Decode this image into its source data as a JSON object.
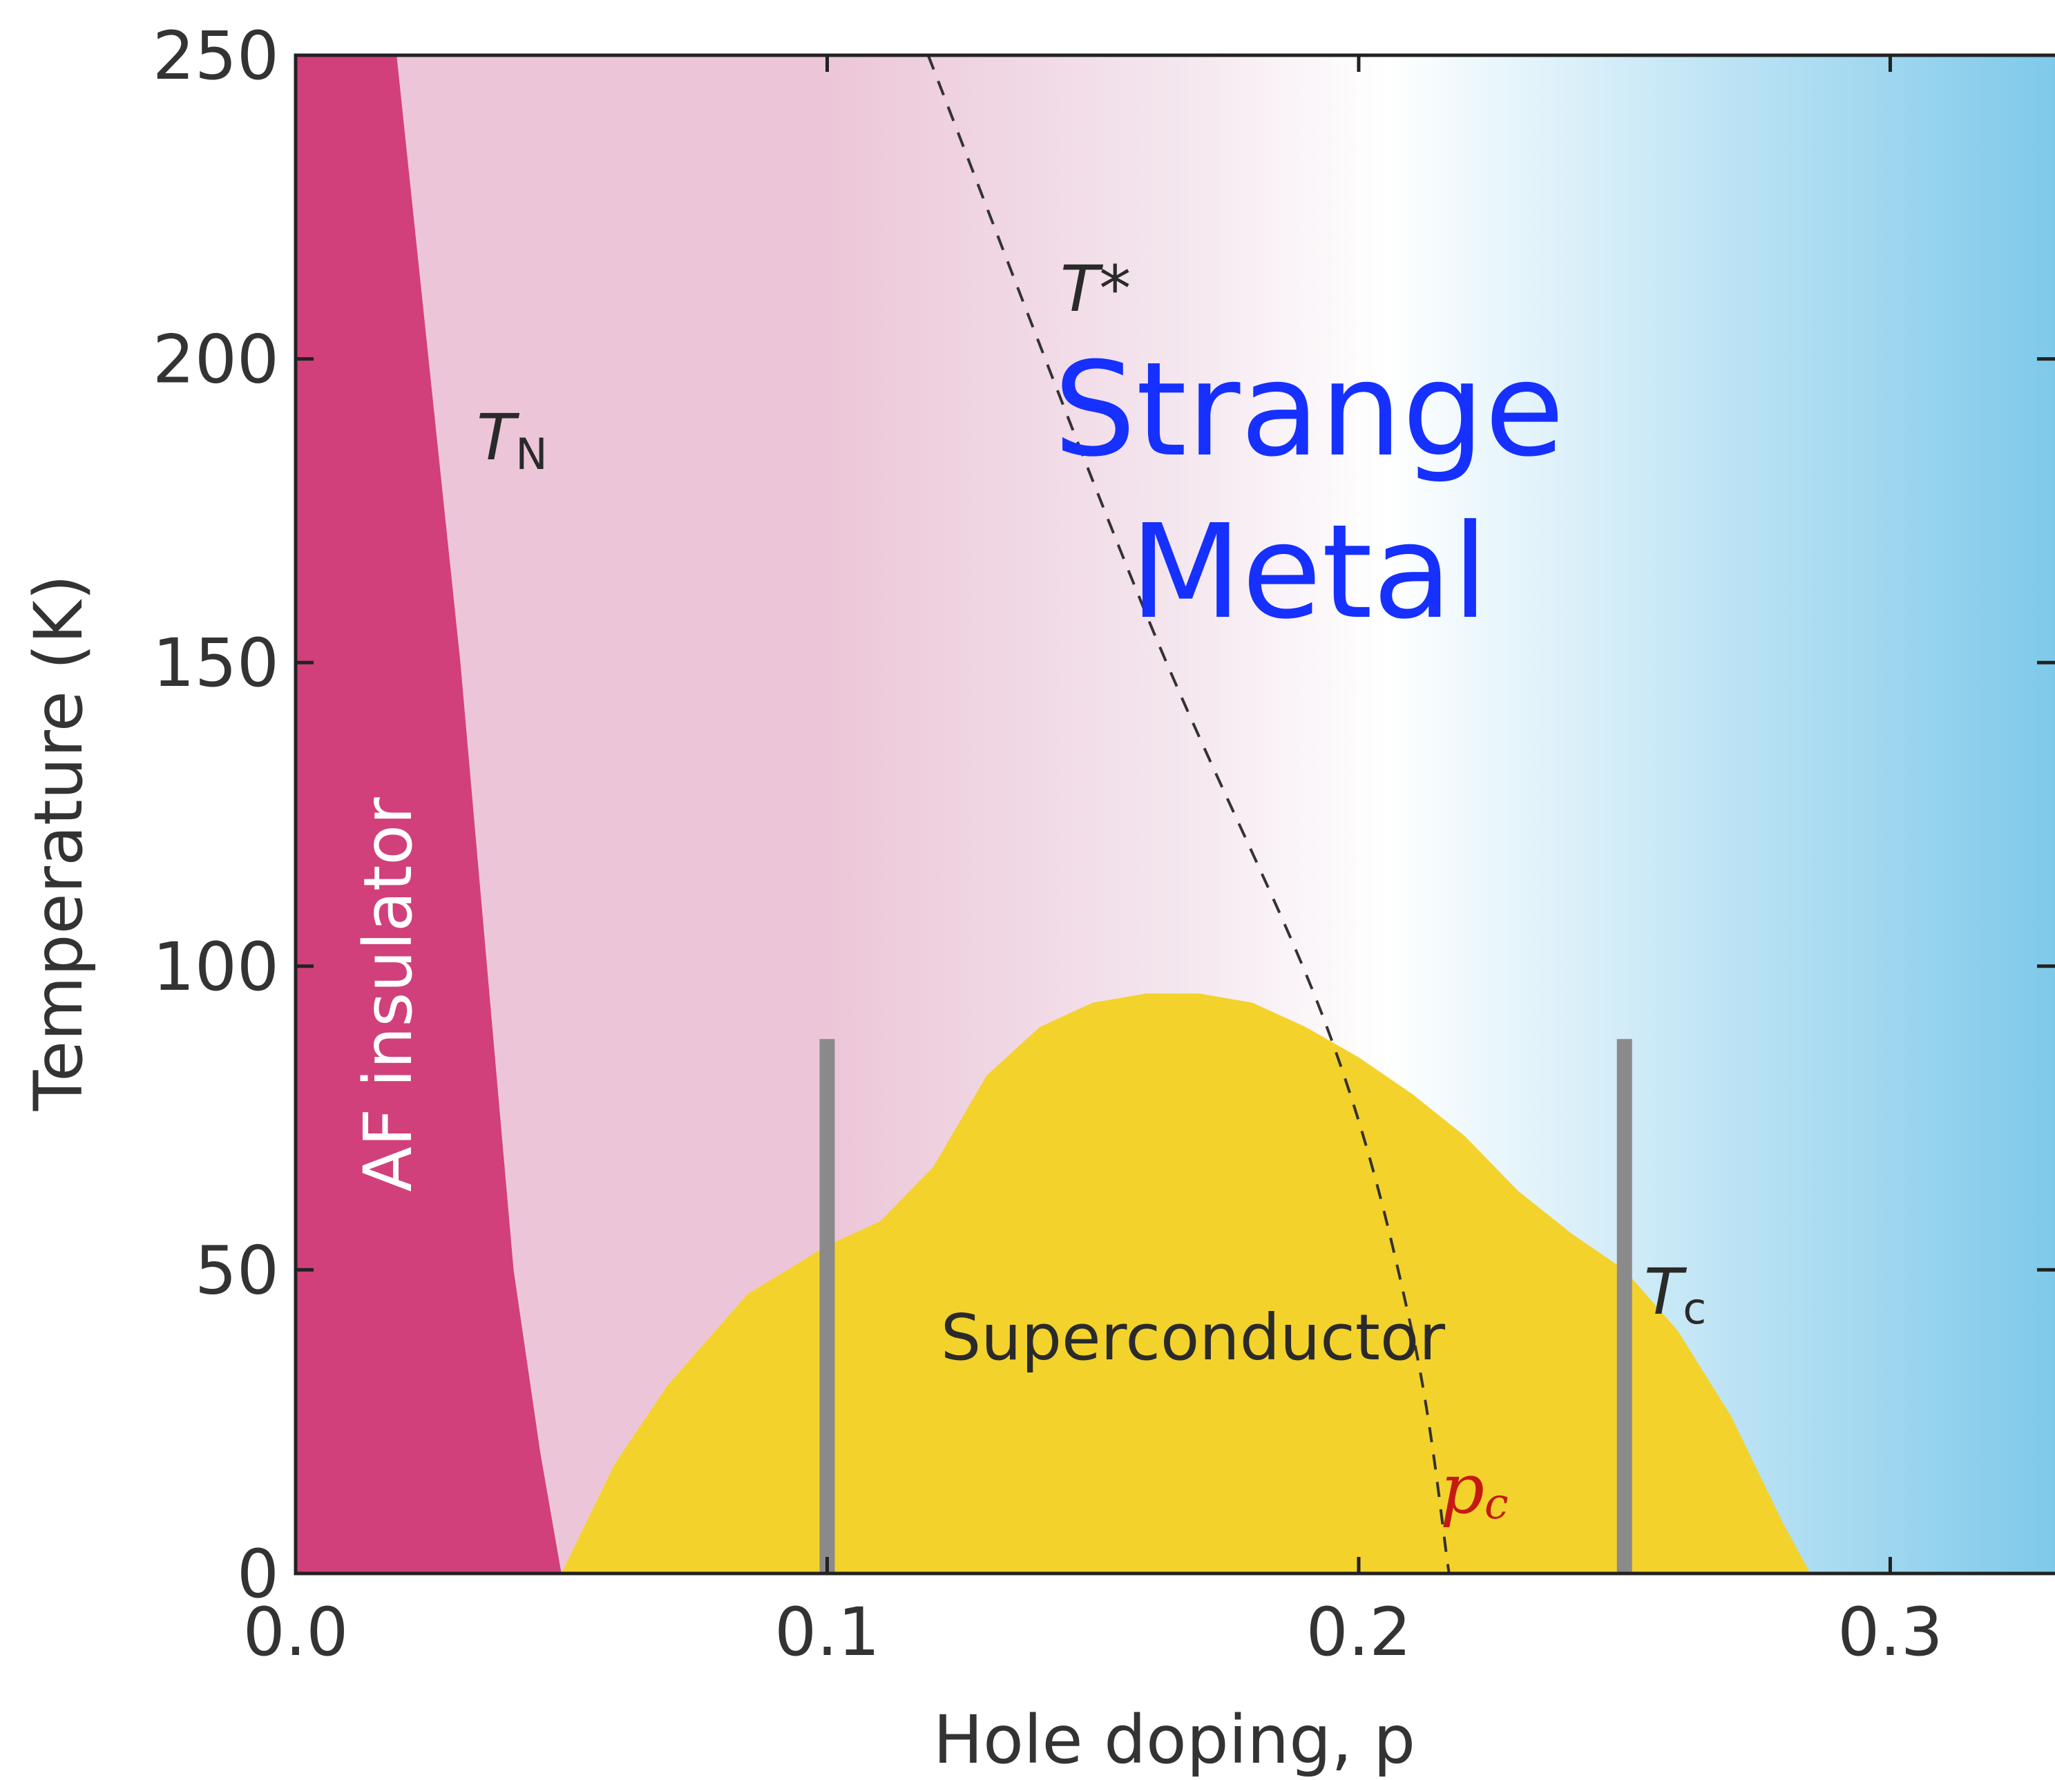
{
  "chart_data": {
    "type": "area",
    "title": "",
    "xlabel": "Hole doping, p",
    "ylabel": "Temperature (K)",
    "xlim": [
      0.0,
      0.35
    ],
    "ylim": [
      0,
      250
    ],
    "x_ticks": [
      "0.0",
      "0.1",
      "0.2",
      "0.3"
    ],
    "y_ticks": [
      "0",
      "50",
      "100",
      "150",
      "200",
      "250"
    ],
    "grid": false,
    "regions": [
      {
        "name": "AF insulator",
        "color": "#d1407a",
        "x": [
          0.0,
          0.019,
          0.025,
          0.031,
          0.036,
          0.041,
          0.046,
          0.05,
          0.0
        ],
        "y": [
          250,
          250,
          200,
          150,
          100,
          50,
          20,
          0,
          0
        ]
      },
      {
        "name": "Superconductor",
        "color": "#f4d22c",
        "x": [
          0.05,
          0.06,
          0.07,
          0.085,
          0.1,
          0.11,
          0.12,
          0.13,
          0.14,
          0.15,
          0.16,
          0.17,
          0.18,
          0.19,
          0.2,
          0.21,
          0.22,
          0.23,
          0.24,
          0.25,
          0.26,
          0.27,
          0.28,
          0.285
        ],
        "y": [
          0,
          18,
          31,
          46,
          54,
          58,
          67,
          82,
          90,
          94,
          95.5,
          95.5,
          94,
          90,
          85,
          79,
          72,
          63,
          56,
          50,
          40,
          26,
          8,
          0
        ]
      }
    ],
    "curves": [
      {
        "name": "T*",
        "style": "dashed",
        "color": "#333333",
        "x": [
          0.119,
          0.16,
          0.194,
          0.21,
          0.217
        ],
        "y": [
          250,
          158,
          90,
          40,
          0
        ]
      }
    ],
    "vertical_markers": [
      {
        "x": 0.1,
        "y_from": 0,
        "y_to": 88,
        "color": "#8a8a8a"
      },
      {
        "x": 0.25,
        "y_from": 0,
        "y_to": 88,
        "color": "#8a8a8a"
      }
    ],
    "annotations": {
      "af_insulator": "AF insulator",
      "superconductor": "Superconductor",
      "tn_main": "T",
      "tn_sub": "N",
      "tstar": "T*",
      "tc_main": "T",
      "tc_sub": "c",
      "strange_line1": "Strange",
      "strange_line2": "Metal",
      "pc_main": "p",
      "pc_sub": "c"
    },
    "colors": {
      "pseudogap_pink": "#ecc6d8",
      "strange_white": "#ffffff",
      "overdoped_blue": "#7ec9ea",
      "strange_text": "#1530ff",
      "pc_text": "#c41a10"
    }
  }
}
